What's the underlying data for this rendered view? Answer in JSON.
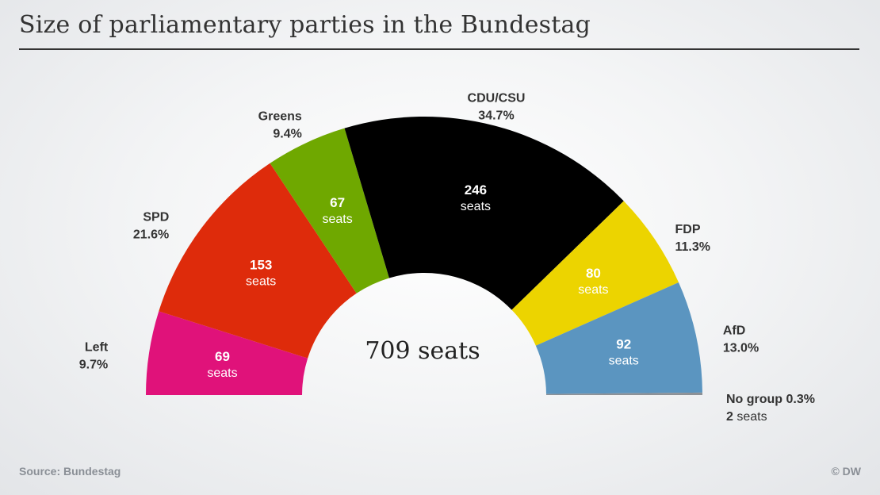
{
  "title": "Size of parliamentary parties in the Bundestag",
  "source": "Source: Bundestag",
  "copyright": "© DW",
  "center_label": "709 seats",
  "chart_data": {
    "type": "pie",
    "subtype": "parliament-semicircle",
    "total_seats": 709,
    "unit_label": "seats",
    "series": [
      {
        "name": "Left",
        "seats": 69,
        "percent": "9.7%",
        "color": "#e0127a"
      },
      {
        "name": "SPD",
        "seats": 153,
        "percent": "21.6%",
        "color": "#de2b0b"
      },
      {
        "name": "Greens",
        "seats": 67,
        "percent": "9.4%",
        "color": "#6fa800"
      },
      {
        "name": "CDU/CSU",
        "seats": 246,
        "percent": "34.7%",
        "color": "#000000"
      },
      {
        "name": "FDP",
        "seats": 80,
        "percent": "11.3%",
        "color": "#ecd400"
      },
      {
        "name": "AfD",
        "seats": 92,
        "percent": "13.0%",
        "color": "#5b95c0"
      },
      {
        "name": "No group",
        "seats": 2,
        "percent": "0.3%",
        "color": "#8c9197"
      }
    ]
  }
}
